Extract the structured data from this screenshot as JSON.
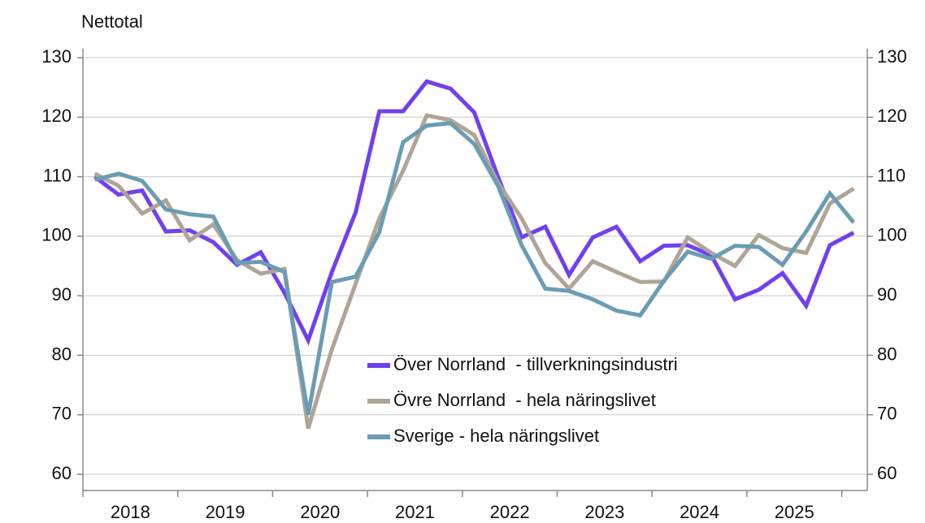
{
  "chart_data": {
    "type": "line",
    "y_label": "Nettotal",
    "years": [
      "2018",
      "2019",
      "2020",
      "2021",
      "2022",
      "2023",
      "2024",
      "2025"
    ],
    "ylim": [
      57,
      131
    ],
    "yticks": [
      60,
      70,
      80,
      90,
      100,
      110,
      120,
      130
    ],
    "y2lim": [
      57,
      131
    ],
    "y2ticks": [
      60,
      70,
      80,
      90,
      100,
      110,
      120,
      130
    ],
    "grid": true,
    "series": [
      {
        "name": "Över Norrland  - tillverkningsindustri",
        "color": "#7040f0",
        "values": [
          110,
          107,
          107.7,
          100.8,
          101,
          99,
          95.2,
          97.3,
          90.5,
          82.5,
          94,
          104,
          121,
          121,
          126,
          124.8,
          120.8,
          110,
          99.8,
          101.6,
          93.5,
          99.8,
          101.6,
          95.8,
          98.4,
          98.5,
          96.8,
          89.4,
          91,
          93.8,
          88.3,
          98.5,
          100.6
        ]
      },
      {
        "name": "Övre Norrland  - hela näringslivet",
        "color": "#b0a496",
        "values": [
          110.5,
          108.5,
          103.8,
          106,
          99.3,
          102,
          96,
          93.7,
          94.5,
          67.7,
          81,
          92,
          103,
          111,
          120.3,
          119.5,
          117,
          109,
          103,
          95.5,
          91.2,
          95.8,
          94,
          92.3,
          92.4,
          99.8,
          97.2,
          95,
          100.2,
          98,
          97.2,
          105.5,
          108
        ]
      },
      {
        "name": "Sverige - hela näringslivet",
        "color": "#6a9cb4",
        "values": [
          109.5,
          110.5,
          109.3,
          104.5,
          103.7,
          103.3,
          95.5,
          95.7,
          94,
          70,
          92.3,
          93.2,
          100.7,
          115.8,
          118.6,
          119,
          115.5,
          108.5,
          98.5,
          91.2,
          90.8,
          89.4,
          87.5,
          86.7,
          92.5,
          97.4,
          96.2,
          98.4,
          98.2,
          95.2,
          100.8,
          107.2,
          102.3
        ]
      }
    ]
  }
}
